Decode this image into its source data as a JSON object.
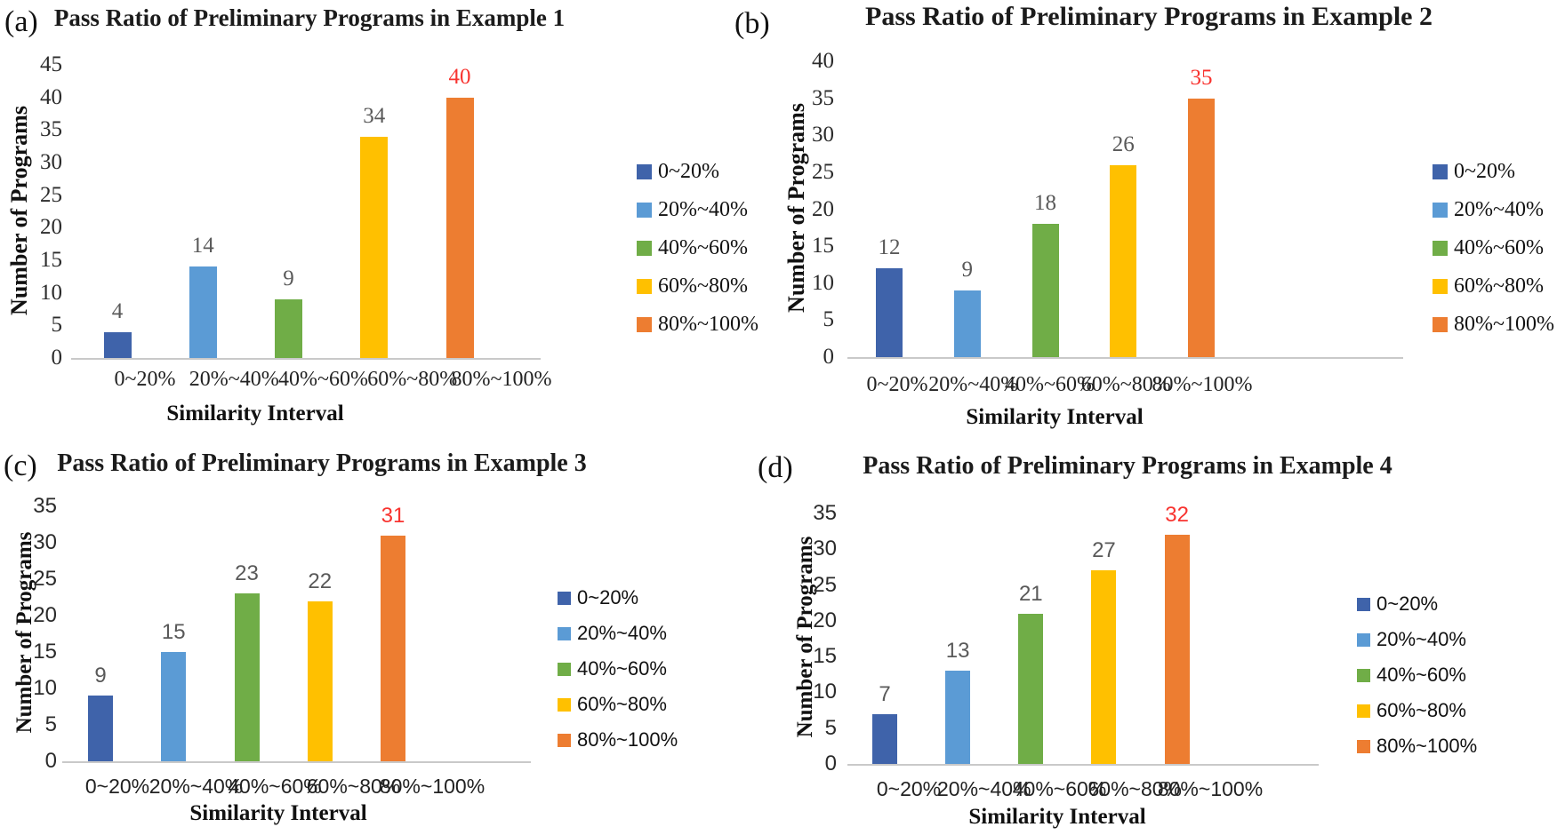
{
  "colors": {
    "bar_palette": [
      "#3F63AA",
      "#5B9BD5",
      "#70AD47",
      "#FFC000",
      "#ED7D31"
    ],
    "value_label": "#595959",
    "value_label_highlight": "#F8332F",
    "axis_line": "#C9C9C9",
    "title_text": "#1B1B1B"
  },
  "chart_data": [
    {
      "type": "bar",
      "panel_label": "(a)",
      "title": "Pass Ratio of Preliminary Programs in Example 1",
      "xlabel": "Similarity Interval",
      "ylabel": "Number of Programs",
      "categories": [
        "0~20%",
        "20%~40%",
        "40%~60%",
        "60%~80%",
        "80%~100%"
      ],
      "values": [
        4,
        14,
        9,
        34,
        40
      ],
      "ylim": [
        0,
        45
      ],
      "yticks": [
        0,
        5,
        10,
        15,
        20,
        25,
        30,
        35,
        40,
        45
      ],
      "grid": false,
      "legend_entries": [
        "0~20%",
        "20%~40%",
        "40%~60%",
        "60%~80%",
        "80%~100%"
      ],
      "legend_position": "right",
      "value_labels_shown": true,
      "highlight_last_value": true
    },
    {
      "type": "bar",
      "panel_label": "(b)",
      "title": "Pass Ratio of Preliminary Programs in Example 2",
      "xlabel": "Similarity Interval",
      "ylabel": "Number of Programs",
      "categories": [
        "0~20%",
        "20%~40%",
        "40%~60%",
        "60%~80%",
        "80%~100%"
      ],
      "values": [
        12,
        9,
        18,
        26,
        35
      ],
      "ylim": [
        0,
        40
      ],
      "yticks": [
        0,
        5,
        10,
        15,
        20,
        25,
        30,
        35,
        40
      ],
      "grid": false,
      "legend_entries": [
        "0~20%",
        "20%~40%",
        "40%~60%",
        "60%~80%",
        "80%~100%"
      ],
      "legend_position": "right",
      "value_labels_shown": true,
      "highlight_last_value": true
    },
    {
      "type": "bar",
      "panel_label": "(c)",
      "title": "Pass Ratio of Preliminary Programs in Example 3",
      "xlabel": "Similarity Interval",
      "ylabel": "Number of Programs",
      "categories": [
        "0~20%",
        "20%~40%",
        "40%~60%",
        "60%~80%",
        "80%~100%"
      ],
      "values": [
        9,
        15,
        23,
        22,
        31
      ],
      "ylim": [
        0,
        35
      ],
      "yticks": [
        0,
        5,
        10,
        15,
        20,
        25,
        30,
        35
      ],
      "grid": false,
      "legend_entries": [
        "0~20%",
        "20%~40%",
        "40%~60%",
        "60%~80%",
        "80%~100%"
      ],
      "legend_position": "right",
      "value_labels_shown": true,
      "highlight_last_value": true
    },
    {
      "type": "bar",
      "panel_label": "(d)",
      "title": "Pass Ratio of Preliminary Programs in Example 4",
      "xlabel": "Similarity Interval",
      "ylabel": "Number of Programs",
      "categories": [
        "0~20%",
        "20%~40%",
        "40%~60%",
        "60%~80%",
        "80%~100%"
      ],
      "values": [
        7,
        13,
        21,
        27,
        32
      ],
      "ylim": [
        0,
        35
      ],
      "yticks": [
        0,
        5,
        10,
        15,
        20,
        25,
        30,
        35
      ],
      "grid": false,
      "legend_entries": [
        "0~20%",
        "20%~40%",
        "40%~60%",
        "60%~80%",
        "80%~100%"
      ],
      "legend_position": "right",
      "value_labels_shown": true,
      "highlight_last_value": true
    }
  ]
}
